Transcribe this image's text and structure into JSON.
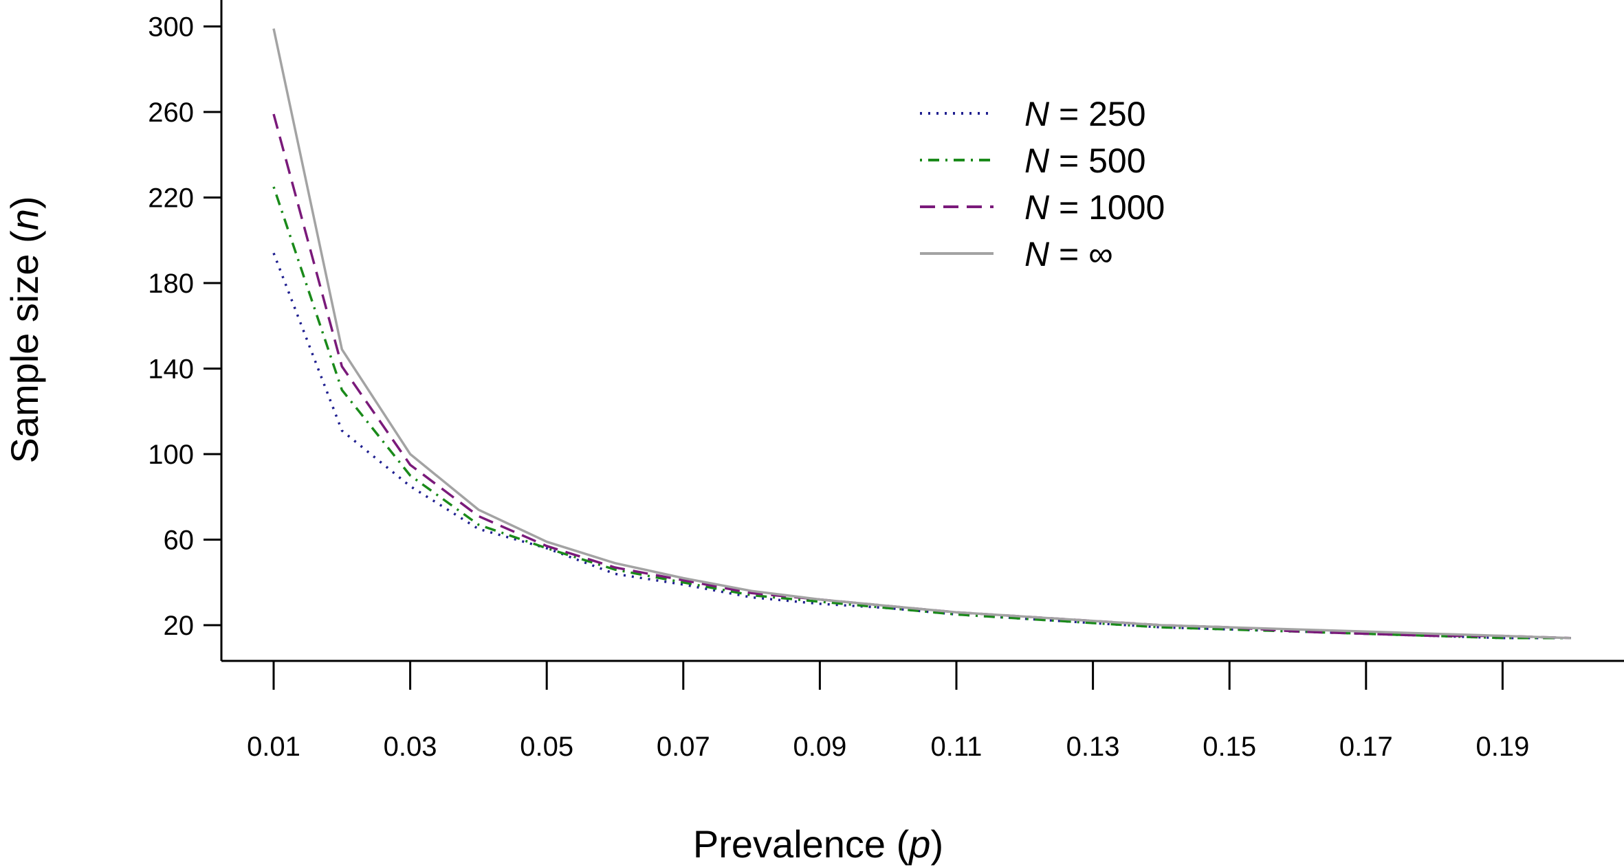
{
  "chart_data": {
    "type": "line",
    "title": "",
    "xlabel": {
      "text": "Prevalence (",
      "var": "p",
      "close": ")"
    },
    "ylabel": {
      "text": "Sample size (",
      "var": "n",
      "close": ")"
    },
    "xlim": [
      0.002,
      0.202
    ],
    "ylim": [
      12,
      305
    ],
    "x_ticks": [
      0.01,
      0.03,
      0.05,
      0.07,
      0.09,
      0.11,
      0.13,
      0.15,
      0.17,
      0.19
    ],
    "x_tick_labels": [
      "0.01",
      "0.03",
      "0.05",
      "0.07",
      "0.09",
      "0.11",
      "0.13",
      "0.15",
      "0.17",
      "0.19"
    ],
    "y_ticks": [
      20,
      60,
      100,
      140,
      180,
      220,
      260,
      300
    ],
    "y_tick_labels": [
      "20",
      "60",
      "100",
      "140",
      "180",
      "220",
      "260",
      "300"
    ],
    "grid": false,
    "legend": {
      "position": "top-right"
    },
    "x": [
      0.01,
      0.02,
      0.03,
      0.04,
      0.05,
      0.06,
      0.07,
      0.08,
      0.09,
      0.1,
      0.11,
      0.12,
      0.13,
      0.14,
      0.15,
      0.16,
      0.17,
      0.18,
      0.19,
      0.2
    ],
    "series": [
      {
        "name": "N = 250",
        "label_var": "N",
        "label_value": "250",
        "color": "#1f1f8f",
        "dash": "dotted",
        "values": [
          194,
          111,
          85,
          65,
          56,
          44,
          39,
          33,
          30,
          28,
          25,
          23,
          21,
          19,
          18,
          17,
          16,
          15,
          14,
          14
        ]
      },
      {
        "name": "N = 500",
        "label_var": "N",
        "label_value": "500",
        "color": "#1a8a1a",
        "dash": "dotdash",
        "values": [
          225,
          130,
          90,
          67,
          56,
          46,
          40,
          34,
          31,
          28,
          25,
          23,
          21,
          19,
          18,
          17,
          16,
          15,
          14,
          14
        ]
      },
      {
        "name": "N = 1000",
        "label_var": "N",
        "label_value": "1000",
        "color": "#7a1a7a",
        "dash": "dashed",
        "values": [
          259,
          141,
          95,
          71,
          57,
          47,
          41,
          35,
          32,
          29,
          26,
          24,
          22,
          20,
          19,
          17,
          16,
          15,
          15,
          14
        ]
      },
      {
        "name": "N = ∞",
        "label_var": "N",
        "label_value": "∞",
        "color": "#a3a3a3",
        "dash": "solid",
        "values": [
          299,
          149,
          100,
          74,
          59,
          49,
          42,
          36,
          32,
          29,
          26,
          24,
          22,
          20,
          19,
          18,
          17,
          16,
          15,
          14
        ]
      }
    ]
  }
}
